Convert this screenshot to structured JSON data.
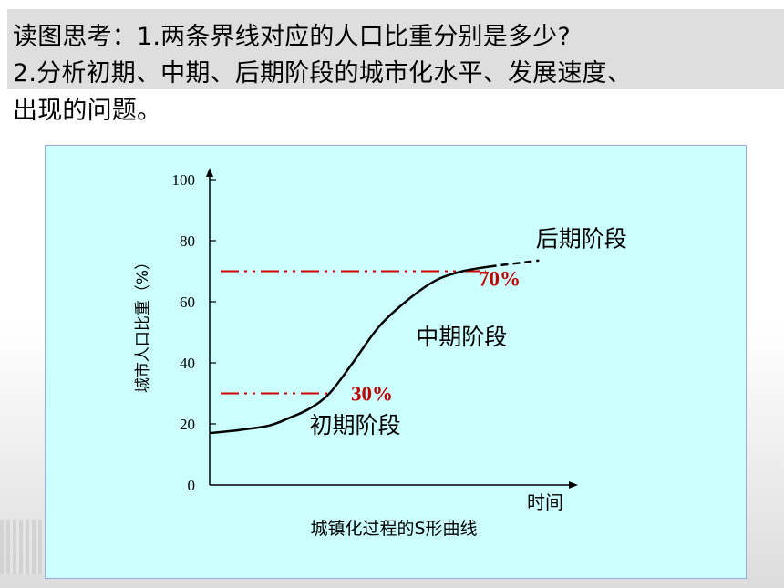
{
  "question": {
    "line1": "读图思考：1.两条界线对应的人口比重分别是多少?",
    "line2": "2.分析初期、中期、后期阶段的城市化水平、发展速度、",
    "line3": "出现的问题。"
  },
  "chart_data": {
    "type": "line",
    "title": "城镇化过程的S形曲线",
    "xlabel": "时间",
    "ylabel": "城市人口比重（%）",
    "ylim": [
      0,
      100
    ],
    "yticks": [
      0,
      20,
      40,
      60,
      80,
      100
    ],
    "grid": false,
    "series": [
      {
        "x": [
          0,
          0.09,
          0.18,
          0.24,
          0.3,
          0.36,
          0.43,
          0.51,
          0.6,
          0.68,
          0.76,
          0.84
        ],
        "values": [
          17,
          18,
          19.5,
          22,
          25,
          30,
          40,
          52,
          61,
          67,
          70,
          71.5
        ]
      }
    ],
    "extension": {
      "x": [
        0.84,
        0.99
      ],
      "values": [
        71.5,
        73.5
      ]
    },
    "thresholds": [
      {
        "value": 30,
        "label": "30%",
        "x_end": 0.37
      },
      {
        "value": 70,
        "label": "70%",
        "x_end": 0.83
      }
    ],
    "stage_labels": [
      {
        "text": "初期阶段",
        "x": 0.3,
        "y": 17
      },
      {
        "text": "中期阶段",
        "x": 0.62,
        "y": 46
      },
      {
        "text": "后期阶段",
        "x": 0.98,
        "y": 78
      }
    ],
    "colors": {
      "curve": "#000000",
      "threshold": "#cc0000",
      "threshold_label": "#c00000",
      "panel": "#ccffff"
    }
  }
}
